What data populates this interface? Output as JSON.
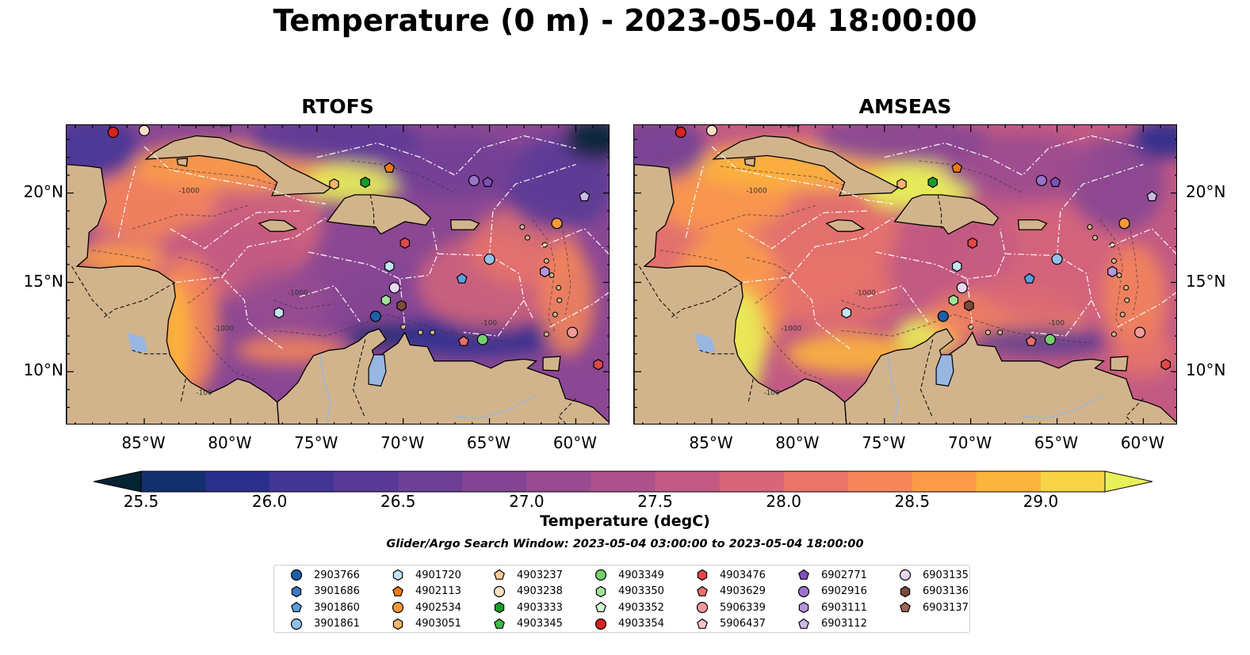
{
  "title": "Temperature (0 m) - 2023-05-04 18:00:00",
  "panels": [
    {
      "title": "RTOFS",
      "variant": "rtofs"
    },
    {
      "title": "AMSEAS",
      "variant": "amseas"
    }
  ],
  "map": {
    "lon_range": [
      -89.5,
      -58
    ],
    "lat_range": [
      7,
      23.8
    ],
    "lon_ticks": [
      {
        "value": -85,
        "label": "85°W"
      },
      {
        "value": -80,
        "label": "80°W"
      },
      {
        "value": -75,
        "label": "75°W"
      },
      {
        "value": -70,
        "label": "70°W"
      },
      {
        "value": -65,
        "label": "65°W"
      },
      {
        "value": -60,
        "label": "60°W"
      }
    ],
    "lat_ticks": [
      {
        "value": 20,
        "label": "20°N"
      },
      {
        "value": 15,
        "label": "15°N"
      },
      {
        "value": 10,
        "label": "10°N"
      }
    ],
    "contour_labels": [
      "-100",
      "-1000"
    ],
    "land_color": "#d2b48c",
    "inland_water_color": "#97b6e1",
    "contour_note": "bathymetry contours dashed dark gray; EEZ boundaries white dash-dot"
  },
  "colorbar": {
    "label": "Temperature (degC)",
    "ticks": [
      "25.5",
      "26.0",
      "26.5",
      "27.0",
      "27.5",
      "28.0",
      "28.5",
      "29.0"
    ],
    "tick_values": [
      25.5,
      26.0,
      26.5,
      27.0,
      27.5,
      28.0,
      28.5,
      29.0
    ],
    "min": 25.5,
    "max": 29.25,
    "extend": "both",
    "colormap": "thermal",
    "colors": [
      "#042333",
      "#13306d",
      "#2a2f8e",
      "#433596",
      "#5a3a97",
      "#6e3f96",
      "#844494",
      "#994b90",
      "#ad518a",
      "#c25a83",
      "#d76679",
      "#e8746a",
      "#f6865a",
      "#fb9b4a",
      "#fdb43d",
      "#f6d445",
      "#e8f059"
    ]
  },
  "search_window": "Glider/Argo Search Window: 2023-05-04 03:00:00 to 2023-05-04 18:00:00",
  "legend": [
    {
      "id": "2903766",
      "marker": "circle",
      "color": "#1f5fa6"
    },
    {
      "id": "3901686",
      "marker": "hexagon",
      "color": "#3a78c0"
    },
    {
      "id": "3901860",
      "marker": "pentagon",
      "color": "#5a9fe0"
    },
    {
      "id": "3901861",
      "marker": "circle",
      "color": "#8fc1ee"
    },
    {
      "id": "4901720",
      "marker": "hexagon",
      "color": "#c4e3f7"
    },
    {
      "id": "4902113",
      "marker": "pentagon",
      "color": "#f07a10"
    },
    {
      "id": "4902534",
      "marker": "circle",
      "color": "#f59a3a"
    },
    {
      "id": "4903051",
      "marker": "hexagon",
      "color": "#f8b46a"
    },
    {
      "id": "4903237",
      "marker": "pentagon",
      "color": "#fbc99a"
    },
    {
      "id": "4903238",
      "marker": "circle",
      "color": "#fde0c4"
    },
    {
      "id": "4903333",
      "marker": "hexagon",
      "color": "#1a9a2a"
    },
    {
      "id": "4903345",
      "marker": "pentagon",
      "color": "#3dbb46"
    },
    {
      "id": "4903349",
      "marker": "circle",
      "color": "#73cf6c"
    },
    {
      "id": "4903350",
      "marker": "hexagon",
      "color": "#a2e39a"
    },
    {
      "id": "4903352",
      "marker": "pentagon",
      "color": "#d1f5cd"
    },
    {
      "id": "4903354",
      "marker": "circle",
      "color": "#d62320"
    },
    {
      "id": "4903476",
      "marker": "hexagon",
      "color": "#e04848"
    },
    {
      "id": "4903629",
      "marker": "pentagon",
      "color": "#ea6e6e"
    },
    {
      "id": "5906339",
      "marker": "circle",
      "color": "#f29a9a"
    },
    {
      "id": "5906437",
      "marker": "pentagon",
      "color": "#f8c4c2"
    },
    {
      "id": "6902771",
      "marker": "pentagon",
      "color": "#7e4fb8"
    },
    {
      "id": "6902916",
      "marker": "circle",
      "color": "#9a72cc"
    },
    {
      "id": "6903111",
      "marker": "hexagon",
      "color": "#b497dc"
    },
    {
      "id": "6903112",
      "marker": "pentagon",
      "color": "#cdb8ea"
    },
    {
      "id": "6903135",
      "marker": "circle",
      "color": "#e6d8f5"
    },
    {
      "id": "6903136",
      "marker": "hexagon",
      "color": "#7b4a3e"
    },
    {
      "id": "6903137",
      "marker": "pentagon",
      "color": "#9e6454"
    }
  ],
  "floats": [
    {
      "id": "4903354",
      "lon": -86.8,
      "lat": 23.4
    },
    {
      "id": "4903238",
      "lon": -85.0,
      "lat": 23.5
    },
    {
      "id": "4903051",
      "lon": -74.0,
      "lat": 20.5
    },
    {
      "id": "4903333",
      "lon": -72.2,
      "lat": 20.6
    },
    {
      "id": "4902113",
      "lon": -70.8,
      "lat": 21.4
    },
    {
      "id": "6902916",
      "lon": -65.9,
      "lat": 20.7
    },
    {
      "id": "6902771",
      "lon": -65.1,
      "lat": 20.6
    },
    {
      "id": "6903112",
      "lon": -59.5,
      "lat": 19.8
    },
    {
      "id": "4902534",
      "lon": -61.1,
      "lat": 18.3
    },
    {
      "id": "4903476",
      "lon": -69.9,
      "lat": 17.2
    },
    {
      "id": "3901861",
      "lon": -65.0,
      "lat": 16.3
    },
    {
      "id": "4901720",
      "lon": -70.8,
      "lat": 15.9
    },
    {
      "id": "6903111",
      "lon": -61.8,
      "lat": 15.6
    },
    {
      "id": "3901860",
      "lon": -66.6,
      "lat": 15.2
    },
    {
      "id": "6903135",
      "lon": -70.5,
      "lat": 14.7
    },
    {
      "id": "4903350",
      "lon": -71.0,
      "lat": 14.0
    },
    {
      "id": "6903136",
      "lon": -70.1,
      "lat": 13.7
    },
    {
      "id": "4901720",
      "lon": -77.2,
      "lat": 13.3
    },
    {
      "id": "2903766",
      "lon": -71.6,
      "lat": 13.1
    },
    {
      "id": "5906339",
      "lon": -60.2,
      "lat": 12.2
    },
    {
      "id": "4903629",
      "lon": -66.5,
      "lat": 11.7
    },
    {
      "id": "4903349",
      "lon": -65.4,
      "lat": 11.8
    },
    {
      "id": "4903476",
      "lon": -58.7,
      "lat": 10.4
    }
  ]
}
